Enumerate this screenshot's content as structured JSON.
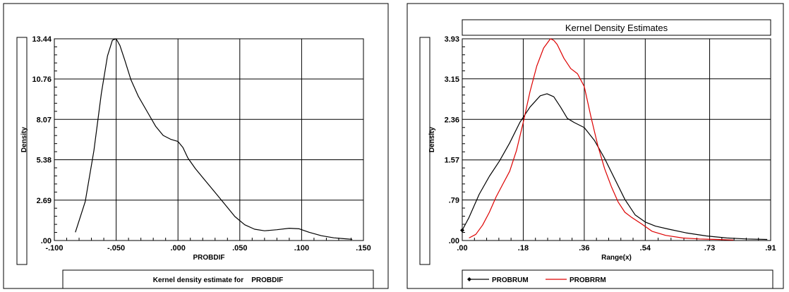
{
  "chart_data": [
    {
      "type": "line",
      "title": "",
      "xlabel": "PROBDIF",
      "ylabel": "Density",
      "caption": "Kernel density estimate for    PROBDIF",
      "xlim": [
        -0.1,
        0.15
      ],
      "ylim": [
        0,
        13.44
      ],
      "x_ticks": [
        "-.100",
        "-.050",
        ".000",
        ".050",
        ".100",
        ".150"
      ],
      "x_tick_values": [
        -0.1,
        -0.05,
        0.0,
        0.05,
        0.1,
        0.15
      ],
      "y_ticks": [
        ".00",
        "2.69",
        "5.38",
        "8.07",
        "10.76",
        "13.44"
      ],
      "y_tick_values": [
        0,
        2.69,
        5.38,
        8.07,
        10.76,
        13.44
      ],
      "grid": true,
      "series": [
        {
          "color": "#000000",
          "x": [
            -0.083,
            -0.075,
            -0.068,
            -0.062,
            -0.057,
            -0.053,
            -0.05,
            -0.047,
            -0.043,
            -0.038,
            -0.032,
            -0.025,
            -0.018,
            -0.012,
            -0.006,
            0.0,
            0.004,
            0.008,
            0.014,
            0.022,
            0.03,
            0.038,
            0.046,
            0.054,
            0.062,
            0.07,
            0.08,
            0.09,
            0.098,
            0.106,
            0.116,
            0.126,
            0.134,
            0.141
          ],
          "y": [
            0.55,
            2.6,
            6.0,
            9.8,
            12.3,
            13.35,
            13.44,
            13.0,
            12.0,
            10.7,
            9.6,
            8.6,
            7.6,
            7.0,
            6.75,
            6.6,
            6.2,
            5.5,
            4.8,
            4.0,
            3.2,
            2.4,
            1.6,
            1.05,
            0.75,
            0.65,
            0.72,
            0.82,
            0.78,
            0.55,
            0.32,
            0.18,
            0.12,
            0.08
          ]
        }
      ]
    },
    {
      "type": "line",
      "title": "Kernel Density Estimates",
      "xlabel": "Range(x)",
      "ylabel": "Density",
      "xlim": [
        0,
        0.91
      ],
      "ylim": [
        0,
        3.93
      ],
      "x_ticks": [
        ".00",
        ".18",
        ".36",
        ".54",
        ".73",
        ".91"
      ],
      "x_tick_values": [
        0,
        0.18,
        0.36,
        0.54,
        0.73,
        0.91
      ],
      "y_ticks": [
        ".00",
        ".79",
        "1.57",
        "2.36",
        "3.15",
        "3.93"
      ],
      "y_tick_values": [
        0,
        0.79,
        1.57,
        2.36,
        3.15,
        3.93
      ],
      "grid": true,
      "legend_position": "bottom",
      "series": [
        {
          "name": "PROBRUM",
          "color": "#000000",
          "x": [
            0.0,
            0.02,
            0.05,
            0.08,
            0.11,
            0.14,
            0.17,
            0.2,
            0.23,
            0.25,
            0.27,
            0.29,
            0.31,
            0.33,
            0.36,
            0.39,
            0.42,
            0.45,
            0.48,
            0.51,
            0.54,
            0.57,
            0.61,
            0.66,
            0.72,
            0.78,
            0.84,
            0.9
          ],
          "y": [
            0.2,
            0.45,
            0.9,
            1.25,
            1.55,
            1.9,
            2.3,
            2.6,
            2.82,
            2.86,
            2.8,
            2.6,
            2.38,
            2.3,
            2.2,
            1.95,
            1.6,
            1.2,
            0.8,
            0.5,
            0.36,
            0.28,
            0.22,
            0.15,
            0.09,
            0.05,
            0.03,
            0.02
          ]
        },
        {
          "name": "PROBRRM",
          "color": "#dd0000",
          "x": [
            0.02,
            0.04,
            0.06,
            0.08,
            0.1,
            0.12,
            0.14,
            0.16,
            0.18,
            0.2,
            0.22,
            0.24,
            0.26,
            0.27,
            0.28,
            0.3,
            0.32,
            0.34,
            0.36,
            0.38,
            0.4,
            0.42,
            0.44,
            0.46,
            0.48,
            0.5,
            0.53,
            0.56,
            0.6,
            0.65,
            0.7,
            0.75,
            0.8
          ],
          "y": [
            0.05,
            0.12,
            0.3,
            0.55,
            0.85,
            1.1,
            1.35,
            1.75,
            2.3,
            2.9,
            3.4,
            3.75,
            3.93,
            3.9,
            3.82,
            3.55,
            3.35,
            3.25,
            3.0,
            2.4,
            1.85,
            1.4,
            1.05,
            0.75,
            0.55,
            0.45,
            0.32,
            0.18,
            0.1,
            0.05,
            0.03,
            0.02,
            0.01
          ]
        }
      ]
    }
  ]
}
